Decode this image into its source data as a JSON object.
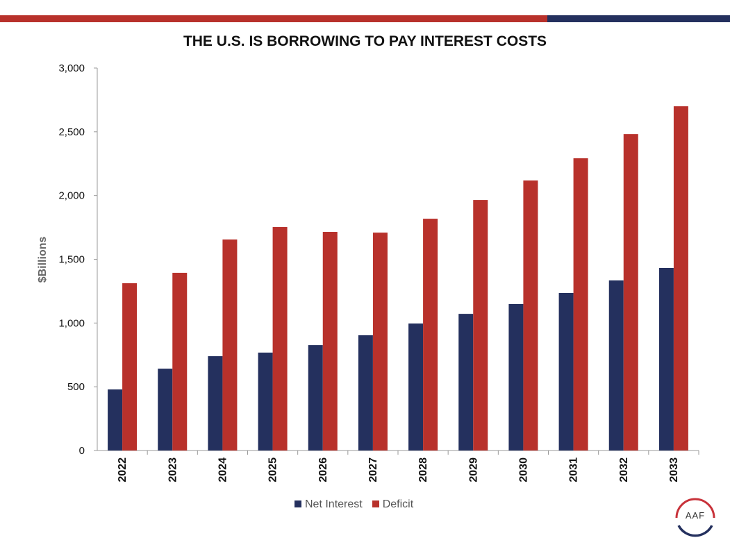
{
  "colors": {
    "net_interest": "#24305e",
    "deficit": "#b8312b",
    "stripe_red": "#b8312b",
    "stripe_navy": "#24305e"
  },
  "logo_text": "AAF",
  "chart_data": {
    "type": "bar",
    "title": "THE U.S. IS BORROWING TO PAY INTEREST COSTS",
    "xlabel": "",
    "ylabel": "$Billions",
    "ylim": [
      0,
      3000
    ],
    "yticks": [
      0,
      500,
      1000,
      1500,
      2000,
      2500,
      3000
    ],
    "ytick_labels": [
      "0",
      "500",
      "1,000",
      "1,500",
      "2,000",
      "2,500",
      "3,000"
    ],
    "grid": false,
    "legend": "bottom",
    "categories": [
      "2022",
      "2023",
      "2024",
      "2025",
      "2026",
      "2027",
      "2028",
      "2029",
      "2030",
      "2031",
      "2032",
      "2033"
    ],
    "series": [
      {
        "name": "Net Interest",
        "values": [
          479,
          642,
          740,
          768,
          827,
          904,
          996,
          1072,
          1149,
          1236,
          1334,
          1432
        ]
      },
      {
        "name": "Deficit",
        "values": [
          1312,
          1394,
          1655,
          1753,
          1715,
          1709,
          1818,
          1965,
          2118,
          2292,
          2482,
          2700
        ]
      }
    ]
  }
}
